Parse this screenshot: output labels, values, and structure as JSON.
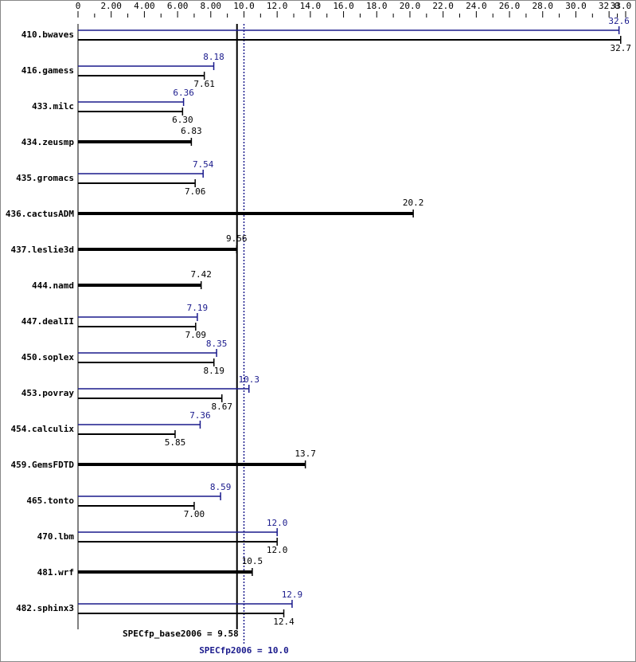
{
  "chart_data": {
    "type": "hbar-range",
    "categories": [
      "410.bwaves",
      "416.gamess",
      "433.milc",
      "434.zeusmp",
      "435.gromacs",
      "436.cactusADM",
      "437.leslie3d",
      "444.namd",
      "447.dealII",
      "450.soplex",
      "453.povray",
      "454.calculix",
      "459.GemsFDTD",
      "465.tonto",
      "470.lbm",
      "481.wrf",
      "482.sphinx3"
    ],
    "series": [
      {
        "color": "#1a1a8c",
        "values": [
          32.6,
          8.18,
          6.36,
          null,
          7.54,
          null,
          null,
          null,
          7.19,
          8.35,
          10.3,
          7.36,
          null,
          8.59,
          12.0,
          null,
          12.9
        ],
        "value_labels": [
          "32.6",
          "8.18",
          "6.36",
          null,
          "7.54",
          null,
          null,
          null,
          "7.19",
          "8.35",
          "10.3",
          "7.36",
          null,
          "8.59",
          "12.0",
          null,
          "12.9"
        ]
      },
      {
        "color": "#000000",
        "values": [
          32.7,
          7.61,
          6.3,
          6.83,
          7.06,
          20.2,
          9.56,
          7.42,
          7.09,
          8.19,
          8.67,
          5.85,
          13.7,
          7.0,
          12.0,
          10.5,
          12.4
        ],
        "value_labels": [
          "32.7",
          "7.61",
          "6.30",
          "6.83",
          "7.06",
          "20.2",
          "9.56",
          "7.42",
          "7.09",
          "8.19",
          "8.67",
          "5.85",
          "13.7",
          "7.00",
          "12.0",
          "10.5",
          "12.4"
        ]
      }
    ],
    "xlim": [
      0,
      33
    ],
    "xticks": [
      0,
      {
        "value": 2,
        "label": "2.00"
      },
      {
        "value": 4,
        "label": "4.00"
      },
      {
        "value": 6,
        "label": "6.00"
      },
      {
        "value": 8,
        "label": "8.00"
      },
      {
        "value": 10,
        "label": "10.0"
      },
      {
        "value": 12,
        "label": "12.0"
      },
      {
        "value": 14,
        "label": "14.0"
      },
      {
        "value": 16,
        "label": "16.0"
      },
      {
        "value": 18,
        "label": "18.0"
      },
      {
        "value": 20,
        "label": "20.0"
      },
      {
        "value": 22,
        "label": "22.0"
      },
      {
        "value": 24,
        "label": "24.0"
      },
      {
        "value": 26,
        "label": "26.0"
      },
      {
        "value": 28,
        "label": "28.0"
      },
      {
        "value": 30,
        "label": "30.0"
      },
      {
        "value": 32,
        "label": "32.0"
      },
      {
        "value": 33,
        "label": "33.0"
      }
    ],
    "reference_lines": [
      {
        "value": 9.58,
        "label": "SPECfp_base2006 = 9.58",
        "color": "#000000"
      },
      {
        "value": 10.0,
        "label": "SPECfp2006 = 10.0",
        "color": "#1a1a8c"
      }
    ]
  }
}
